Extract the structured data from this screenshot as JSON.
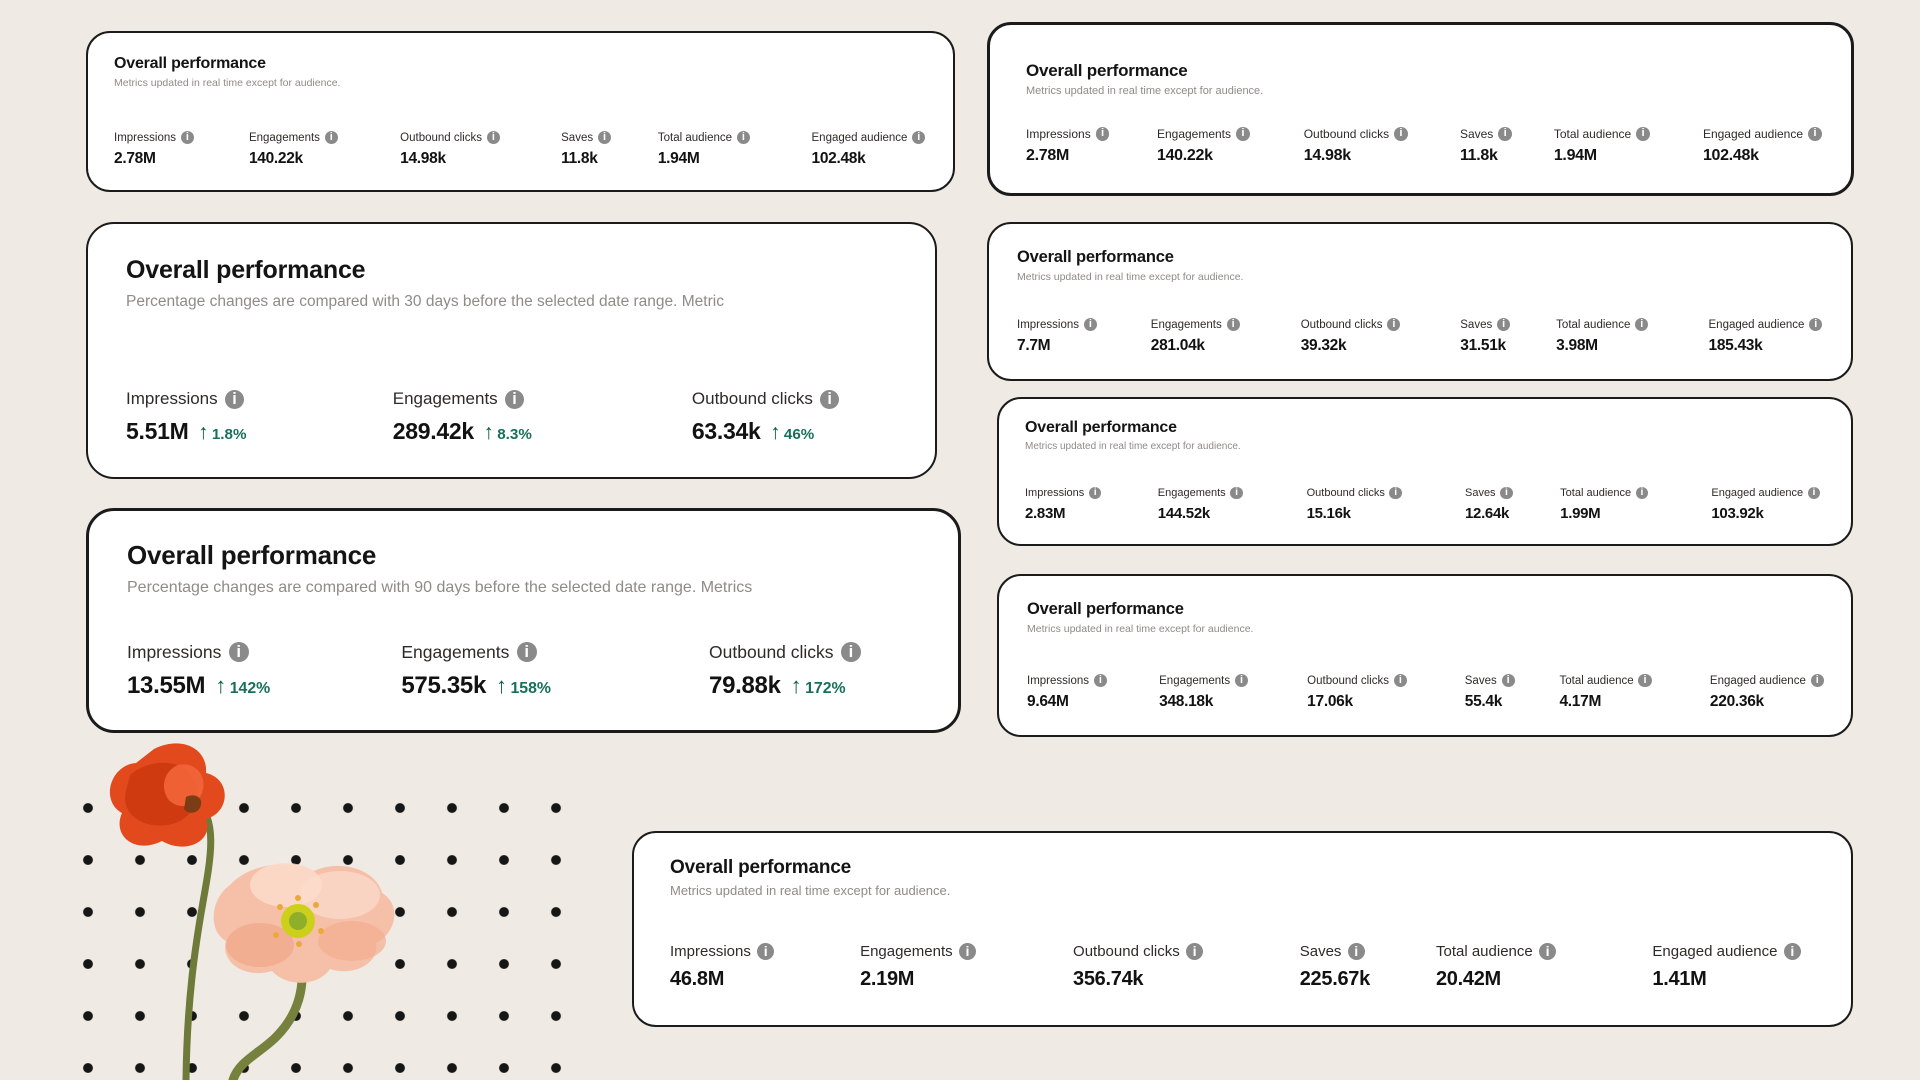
{
  "page": {
    "background_color": "#efeae3",
    "dot_pattern_color": "#161616"
  },
  "colors": {
    "card_background": "#ffffff",
    "card_border": "#1b1b1b",
    "title_text": "#141414",
    "subtitle_text": "#8f8b86",
    "value_text": "#121212",
    "positive_green": "#17705b",
    "arrow_green": "#0f5f46",
    "info_icon_gray": "#8a8a8a",
    "poppy_orange": "#e24a1e",
    "poppy_peach": "#f6c0a8"
  },
  "icons": {
    "info_icon": "i",
    "up_arrow_icon": "↑"
  },
  "cards": [
    {
      "title": "Overall performance",
      "subtitle": "Metrics updated in real time except for audience.",
      "metrics": [
        {
          "label": "Impressions",
          "value": "2.78M"
        },
        {
          "label": "Engagements",
          "value": "140.22k"
        },
        {
          "label": "Outbound clicks",
          "value": "14.98k"
        },
        {
          "label": "Saves",
          "value": "11.8k"
        },
        {
          "label": "Total audience",
          "value": "1.94M"
        },
        {
          "label": "Engaged audience",
          "value": "102.48k"
        }
      ]
    },
    {
      "title": "Overall performance",
      "subtitle": "Metrics updated in real time except for audience.",
      "metrics": [
        {
          "label": "Impressions",
          "value": "2.78M"
        },
        {
          "label": "Engagements",
          "value": "140.22k"
        },
        {
          "label": "Outbound clicks",
          "value": "14.98k"
        },
        {
          "label": "Saves",
          "value": "11.8k"
        },
        {
          "label": "Total audience",
          "value": "1.94M"
        },
        {
          "label": "Engaged audience",
          "value": "102.48k"
        }
      ]
    },
    {
      "title": "Overall performance",
      "subtitle": "Percentage changes are compared with 30 days before the selected date range. Metric",
      "metrics": [
        {
          "label": "Impressions",
          "value": "5.51M",
          "change": "1.8%",
          "direction": "up"
        },
        {
          "label": "Engagements",
          "value": "289.42k",
          "change": "8.3%",
          "direction": "up"
        },
        {
          "label": "Outbound clicks",
          "value": "63.34k",
          "change": "46%",
          "direction": "up"
        }
      ]
    },
    {
      "title": "Overall performance",
      "subtitle": "Percentage changes are compared with 90 days before the selected date range. Metrics",
      "metrics": [
        {
          "label": "Impressions",
          "value": "13.55M",
          "change": "142%",
          "direction": "up"
        },
        {
          "label": "Engagements",
          "value": "575.35k",
          "change": "158%",
          "direction": "up"
        },
        {
          "label": "Outbound clicks",
          "value": "79.88k",
          "change": "172%",
          "direction": "up"
        }
      ]
    },
    {
      "title": "Overall performance",
      "subtitle": "Metrics updated in real time except for audience.",
      "metrics": [
        {
          "label": "Impressions",
          "value": "7.7M"
        },
        {
          "label": "Engagements",
          "value": "281.04k"
        },
        {
          "label": "Outbound clicks",
          "value": "39.32k"
        },
        {
          "label": "Saves",
          "value": "31.51k"
        },
        {
          "label": "Total audience",
          "value": "3.98M"
        },
        {
          "label": "Engaged audience",
          "value": "185.43k"
        }
      ]
    },
    {
      "title": "Overall performance",
      "subtitle": "Metrics updated in real time except for audience.",
      "metrics": [
        {
          "label": "Impressions",
          "value": "2.83M"
        },
        {
          "label": "Engagements",
          "value": "144.52k"
        },
        {
          "label": "Outbound clicks",
          "value": "15.16k"
        },
        {
          "label": "Saves",
          "value": "12.64k"
        },
        {
          "label": "Total audience",
          "value": "1.99M"
        },
        {
          "label": "Engaged audience",
          "value": "103.92k"
        }
      ]
    },
    {
      "title": "Overall performance",
      "subtitle": "Metrics updated in real time except for audience.",
      "metrics": [
        {
          "label": "Impressions",
          "value": "9.64M"
        },
        {
          "label": "Engagements",
          "value": "348.18k"
        },
        {
          "label": "Outbound clicks",
          "value": "17.06k"
        },
        {
          "label": "Saves",
          "value": "55.4k"
        },
        {
          "label": "Total audience",
          "value": "4.17M"
        },
        {
          "label": "Engaged audience",
          "value": "220.36k"
        }
      ]
    },
    {
      "title": "Overall performance",
      "subtitle": "Metrics updated in real time except for audience.",
      "metrics": [
        {
          "label": "Impressions",
          "value": "46.8M"
        },
        {
          "label": "Engagements",
          "value": "2.19M"
        },
        {
          "label": "Outbound clicks",
          "value": "356.74k"
        },
        {
          "label": "Saves",
          "value": "225.67k"
        },
        {
          "label": "Total audience",
          "value": "20.42M"
        },
        {
          "label": "Engaged audience",
          "value": "1.41M"
        }
      ]
    }
  ]
}
